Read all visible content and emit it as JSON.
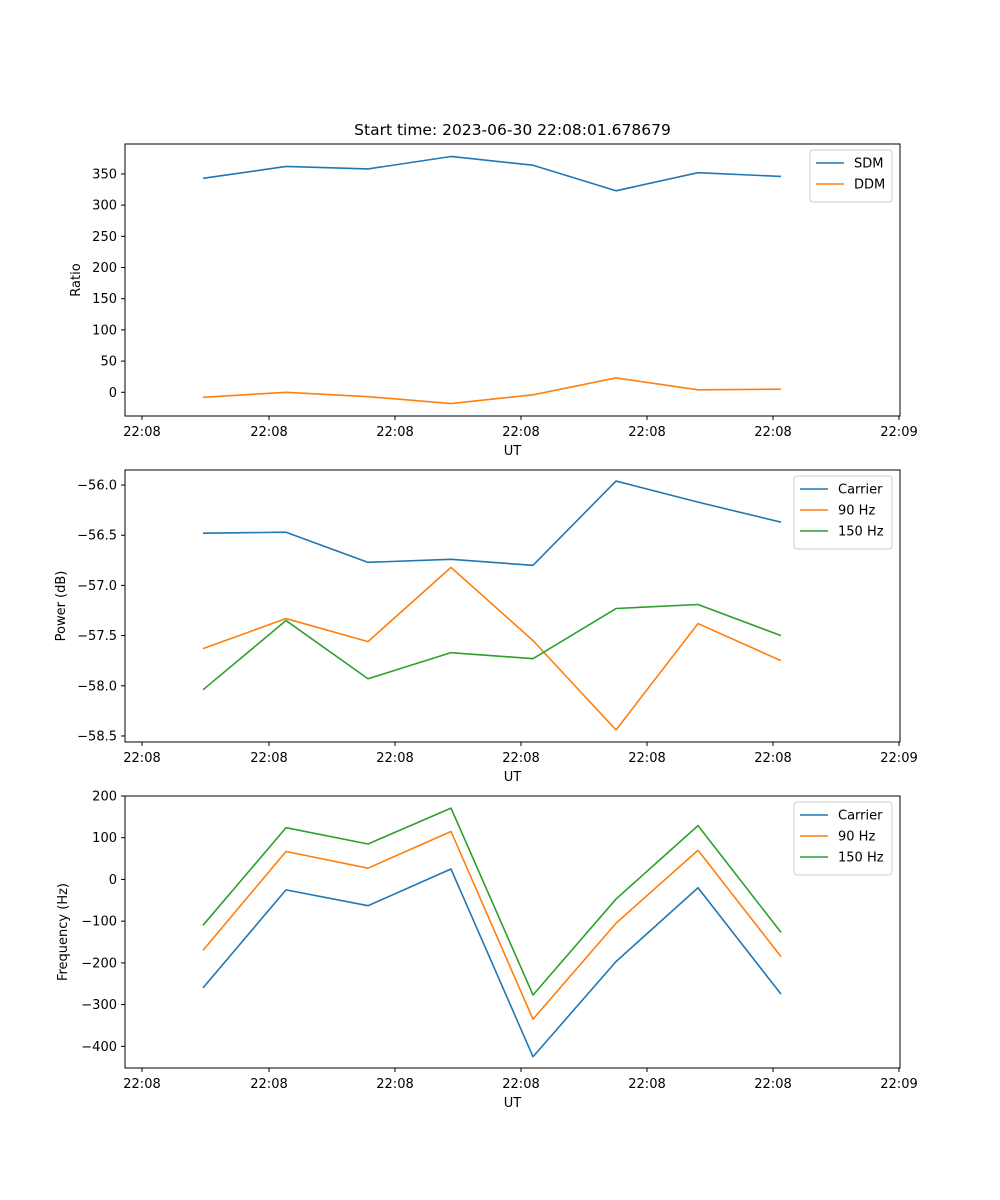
{
  "chart_data": [
    {
      "type": "line",
      "title": "Start time: 2023-06-30 22:08:01.678679",
      "xlabel": "UT",
      "ylabel": "Ratio",
      "x_tick_labels": [
        "22:08",
        "22:08",
        "22:08",
        "22:08",
        "22:08",
        "22:08",
        "22:08",
        "22:09"
      ],
      "x": [
        1,
        2,
        3,
        4,
        5,
        6,
        7,
        8
      ],
      "ylim": [
        -38,
        398
      ],
      "yticks": [
        0,
        50,
        100,
        150,
        200,
        250,
        300,
        350
      ],
      "legend": "top-right",
      "series": [
        {
          "name": "SDM",
          "color": "#1f77b4",
          "values": [
            343,
            362,
            358,
            378,
            364,
            323,
            352,
            346
          ]
        },
        {
          "name": "DDM",
          "color": "#ff7f0e",
          "values": [
            -8,
            0,
            -7,
            -18,
            -4,
            23,
            4,
            5
          ]
        }
      ]
    },
    {
      "type": "line",
      "title": "",
      "xlabel": "UT",
      "ylabel": "Power (dB)",
      "x_tick_labels": [
        "22:08",
        "22:08",
        "22:08",
        "22:08",
        "22:08",
        "22:08",
        "22:08",
        "22:09"
      ],
      "x": [
        1,
        2,
        3,
        4,
        5,
        6,
        7,
        8
      ],
      "ylim": [
        -58.56,
        -55.85
      ],
      "yticks": [
        -58.5,
        -58.0,
        -57.5,
        -57.0,
        -56.5,
        -56.0
      ],
      "legend": "top-right",
      "series": [
        {
          "name": "Carrier",
          "color": "#1f77b4",
          "values": [
            -56.48,
            -56.47,
            -56.77,
            -56.74,
            -56.8,
            -55.96,
            -56.17,
            -56.37
          ]
        },
        {
          "name": "90 Hz",
          "color": "#ff7f0e",
          "values": [
            -57.63,
            -57.33,
            -57.56,
            -56.82,
            -57.55,
            -58.44,
            -57.38,
            -57.75
          ]
        },
        {
          "name": "150 Hz",
          "color": "#2ca02c",
          "values": [
            -58.04,
            -57.35,
            -57.93,
            -57.67,
            -57.73,
            -57.23,
            -57.19,
            -57.5
          ]
        }
      ]
    },
    {
      "type": "line",
      "title": "",
      "xlabel": "UT",
      "ylabel": "Frequency (Hz)",
      "x_tick_labels": [
        "22:08",
        "22:08",
        "22:08",
        "22:08",
        "22:08",
        "22:08",
        "22:08",
        "22:09"
      ],
      "x": [
        1,
        2,
        3,
        4,
        5,
        6,
        7,
        8
      ],
      "ylim": [
        -452,
        200
      ],
      "yticks": [
        -400,
        -300,
        -200,
        -100,
        0,
        100,
        200
      ],
      "legend": "top-right",
      "series": [
        {
          "name": "Carrier",
          "color": "#1f77b4",
          "values": [
            -260,
            -25,
            -63,
            25,
            -425,
            -197,
            -20,
            -275
          ]
        },
        {
          "name": "90 Hz",
          "color": "#ff7f0e",
          "values": [
            -170,
            67,
            27,
            115,
            -335,
            -105,
            70,
            -185
          ]
        },
        {
          "name": "150 Hz",
          "color": "#2ca02c",
          "values": [
            -110,
            124,
            85,
            171,
            -277,
            -47,
            129,
            -127
          ]
        }
      ]
    }
  ]
}
